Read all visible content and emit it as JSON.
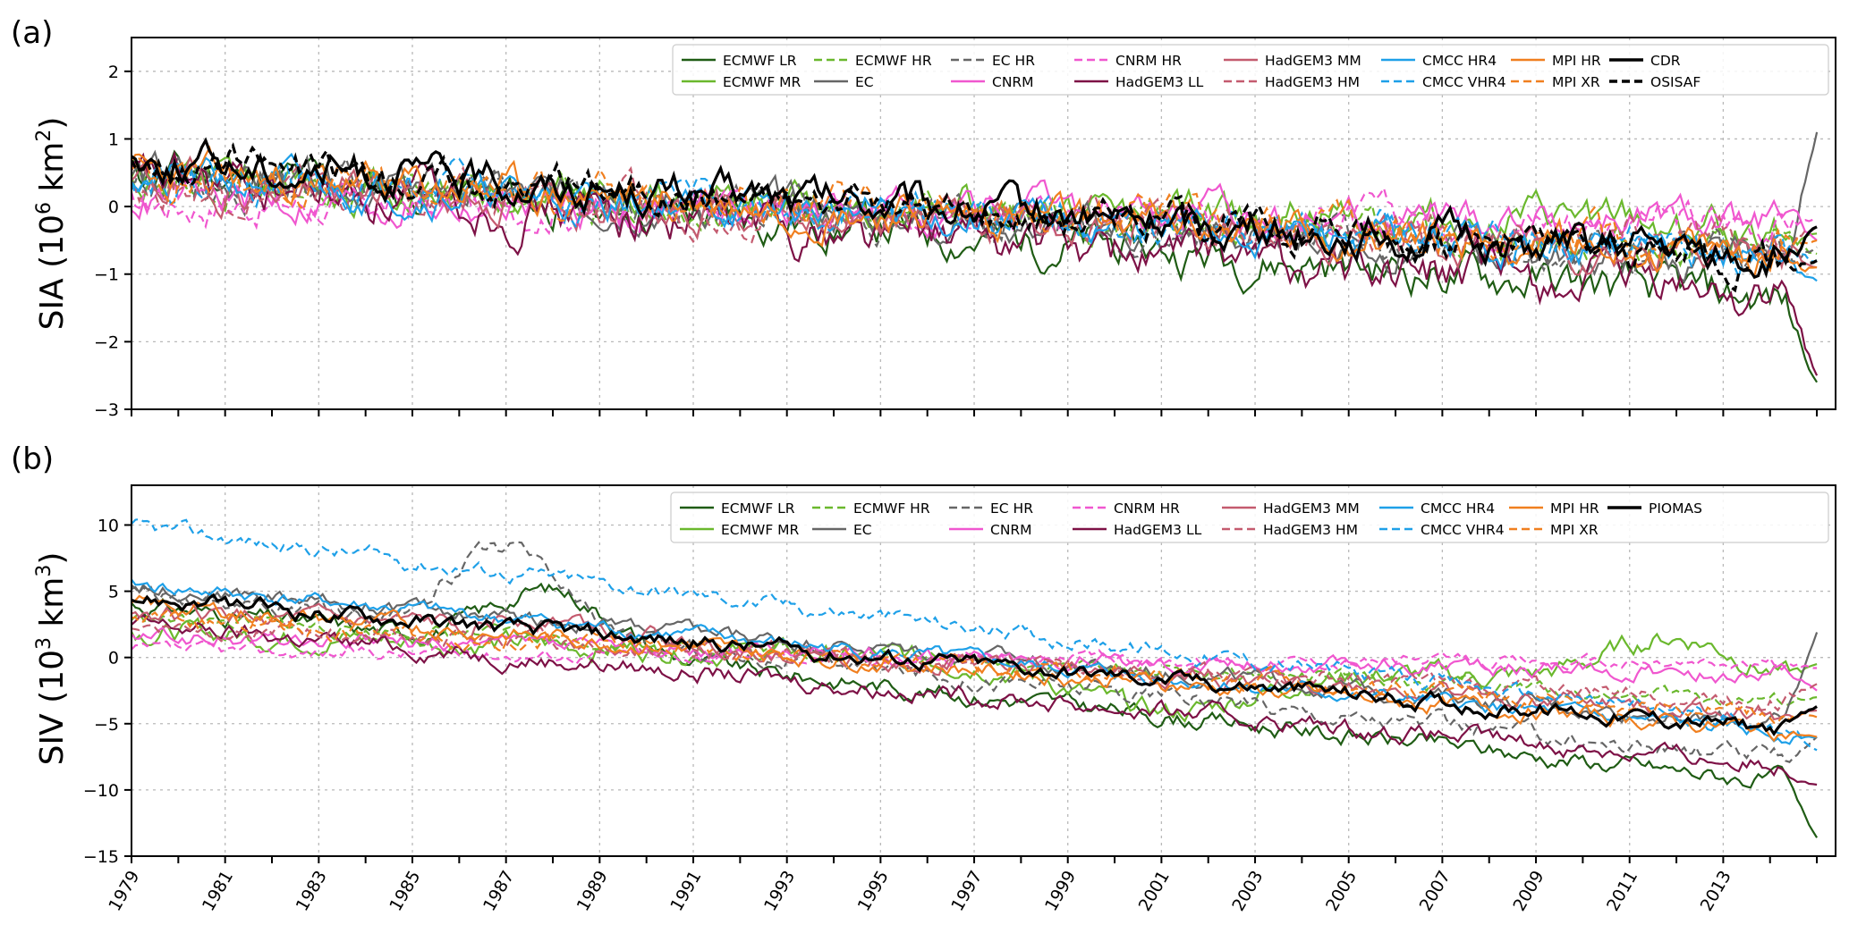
{
  "chart_data": [
    {
      "panel_label": "(a)",
      "type": "line",
      "ylabel_text": "SIA (10",
      "ylabel_sup1": "6",
      "ylabel_mid": " km",
      "ylabel_sup2": "2",
      "ylabel_end": ")",
      "ylim": [
        -3,
        2.5
      ],
      "yticks": [
        -3,
        -2,
        -1,
        0,
        1,
        2
      ],
      "ytick_labels": [
        "−3",
        "−2",
        "−1",
        "0",
        "1",
        "2"
      ],
      "xlim": [
        1979,
        2015.4
      ],
      "grid": true,
      "legend_position": "top-right",
      "series": [
        {
          "name": "ECMWF LR",
          "color": "#1f5c14",
          "dash": "solid",
          "start": 0.55,
          "trend": -0.055,
          "noise": 0.45,
          "seed": 11,
          "bump": 0,
          "bumpCenter": 1987,
          "bumpWidth": 2,
          "end_val": -2.6
        },
        {
          "name": "ECMWF MR",
          "color": "#6ab82d",
          "dash": "solid",
          "start": 0.35,
          "trend": -0.02,
          "noise": 0.42,
          "seed": 12,
          "bump": 0,
          "bumpCenter": 1987,
          "bumpWidth": 2,
          "end_val": -0.4
        },
        {
          "name": "ECMWF HR",
          "color": "#6ab82d",
          "dash": "dashed",
          "start": 0.4,
          "trend": -0.03,
          "noise": 0.38,
          "seed": 13,
          "bump": 0,
          "bumpCenter": 1987,
          "bumpWidth": 2,
          "end_val": -0.7
        },
        {
          "name": "EC",
          "color": "#666666",
          "dash": "solid",
          "start": 0.5,
          "trend": -0.04,
          "noise": 0.4,
          "seed": 14,
          "bump": 0,
          "bumpCenter": 1987,
          "bumpWidth": 2,
          "end_val": 1.1
        },
        {
          "name": "EC HR",
          "color": "#666666",
          "dash": "dashed",
          "start": 0.45,
          "trend": -0.035,
          "noise": 0.4,
          "seed": 15,
          "bump": 0,
          "bumpCenter": 1987,
          "bumpWidth": 2,
          "end_val": -0.6
        },
        {
          "name": "CNRM",
          "color": "#f057cf",
          "dash": "solid",
          "start": 0.1,
          "trend": -0.01,
          "noise": 0.38,
          "seed": 16,
          "bump": 0,
          "bumpCenter": 1987,
          "bumpWidth": 2,
          "end_val": -0.5
        },
        {
          "name": "CNRM HR",
          "color": "#f057cf",
          "dash": "dashed",
          "start": 0.05,
          "trend": -0.008,
          "noise": 0.38,
          "seed": 17,
          "bump": 0,
          "bumpCenter": 1987,
          "bumpWidth": 2,
          "end_val": -0.2
        },
        {
          "name": "HadGEM3 LL",
          "color": "#7d1146",
          "dash": "solid",
          "start": 0.4,
          "trend": -0.05,
          "noise": 0.5,
          "seed": 18,
          "bump": 0,
          "bumpCenter": 1987,
          "bumpWidth": 2,
          "end_val": -2.5
        },
        {
          "name": "HadGEM3 MM",
          "color": "#c45b6f",
          "dash": "solid",
          "start": 0.35,
          "trend": -0.03,
          "noise": 0.42,
          "seed": 19,
          "bump": 0,
          "bumpCenter": 1987,
          "bumpWidth": 2,
          "end_val": -0.9
        },
        {
          "name": "HadGEM3 HM",
          "color": "#c45b6f",
          "dash": "dashed",
          "start": 0.3,
          "trend": -0.025,
          "noise": 0.4,
          "seed": 20,
          "bump": 0,
          "bumpCenter": 1987,
          "bumpWidth": 2,
          "end_val": -0.3
        },
        {
          "name": "CMCC HR4",
          "color": "#1ea0e8",
          "dash": "solid",
          "start": 0.45,
          "trend": -0.035,
          "noise": 0.38,
          "seed": 21,
          "bump": 0,
          "bumpCenter": 1987,
          "bumpWidth": 2,
          "end_val": -1.1
        },
        {
          "name": "CMCC VHR4",
          "color": "#1ea0e8",
          "dash": "dashed",
          "start": 0.5,
          "trend": -0.035,
          "noise": 0.4,
          "seed": 22,
          "bump": 0,
          "bumpCenter": 1987,
          "bumpWidth": 2,
          "end_val": -0.8
        },
        {
          "name": "MPI HR",
          "color": "#f07f1f",
          "dash": "solid",
          "start": 0.5,
          "trend": -0.035,
          "noise": 0.4,
          "seed": 23,
          "bump": 0,
          "bumpCenter": 1987,
          "bumpWidth": 2,
          "end_val": -0.9
        },
        {
          "name": "MPI XR",
          "color": "#f07f1f",
          "dash": "dashed",
          "start": 0.45,
          "trend": -0.03,
          "noise": 0.4,
          "seed": 24,
          "bump": 0,
          "bumpCenter": 1987,
          "bumpWidth": 2,
          "end_val": -0.5
        },
        {
          "name": "CDR",
          "color": "#000000",
          "dash": "solid",
          "start": 0.7,
          "trend": -0.042,
          "noise": 0.4,
          "seed": 25,
          "bump": 0,
          "bumpCenter": 1987,
          "bumpWidth": 2,
          "end_val": -0.3,
          "bold": true
        },
        {
          "name": "OSISAF",
          "color": "#000000",
          "dash": "dashed",
          "start": 0.7,
          "trend": -0.042,
          "noise": 0.38,
          "seed": 26,
          "bump": 0,
          "bumpCenter": 1987,
          "bumpWidth": 2,
          "end_val": -0.8,
          "bold": true
        }
      ]
    },
    {
      "panel_label": "(b)",
      "type": "line",
      "ylabel_text": "SIV (10",
      "ylabel_sup1": "3",
      "ylabel_mid": " km",
      "ylabel_sup2": "3",
      "ylabel_end": ")",
      "ylim": [
        -15,
        13
      ],
      "yticks": [
        -15,
        -10,
        -5,
        0,
        5,
        10
      ],
      "ytick_labels": [
        "−15",
        "−10",
        "−5",
        "0",
        "5",
        "10"
      ],
      "xlim": [
        1979,
        2015.4
      ],
      "xtick_labels": [
        "1979",
        "1981",
        "1983",
        "1985",
        "1987",
        "1989",
        "1991",
        "1993",
        "1995",
        "1997",
        "1999",
        "2001",
        "2003",
        "2005",
        "2007",
        "2009",
        "2011",
        "2013"
      ],
      "grid": true,
      "legend_position": "top-right",
      "series": [
        {
          "name": "ECMWF LR",
          "color": "#1f5c14",
          "dash": "solid",
          "start": 4.0,
          "trend": -0.38,
          "noise": 1.0,
          "seed": 31,
          "bump": 4.5,
          "bumpCenter": 1988,
          "bumpWidth": 1.8,
          "end_val": -13.6
        },
        {
          "name": "ECMWF MR",
          "color": "#6ab82d",
          "dash": "solid",
          "start": 2.0,
          "trend": -0.12,
          "noise": 1.2,
          "seed": 32,
          "bump": 0,
          "bumpCenter": 2001,
          "bumpWidth": 2,
          "end_val": -0.5,
          "dip": -3.5,
          "dipCenter": 2001,
          "dipWidth": 2.5,
          "rise": 3.5,
          "riseCenter": 2012,
          "riseWidth": 2
        },
        {
          "name": "ECMWF HR",
          "color": "#6ab82d",
          "dash": "dashed",
          "start": 3.0,
          "trend": -0.18,
          "noise": 0.8,
          "seed": 33,
          "bump": 0,
          "bumpCenter": 1988,
          "bumpWidth": 2,
          "end_val": -3.0
        },
        {
          "name": "EC",
          "color": "#666666",
          "dash": "solid",
          "start": 5.5,
          "trend": -0.3,
          "noise": 0.9,
          "seed": 34,
          "bump": 0,
          "bumpCenter": 1988,
          "bumpWidth": 2,
          "end_val": 1.9
        },
        {
          "name": "EC HR",
          "color": "#666666",
          "dash": "dashed",
          "start": 5.0,
          "trend": -0.36,
          "noise": 1.0,
          "seed": 35,
          "bump": 6,
          "bumpCenter": 1987,
          "bumpWidth": 1.6,
          "end_val": -6.0
        },
        {
          "name": "CNRM",
          "color": "#f057cf",
          "dash": "solid",
          "start": 1.5,
          "trend": -0.08,
          "noise": 0.9,
          "seed": 36,
          "bump": 0,
          "bumpCenter": 1988,
          "bumpWidth": 2,
          "end_val": -2.5
        },
        {
          "name": "CNRM HR",
          "color": "#f057cf",
          "dash": "dashed",
          "start": 0.5,
          "trend": -0.03,
          "noise": 0.7,
          "seed": 37,
          "bump": 0,
          "bumpCenter": 1988,
          "bumpWidth": 2,
          "end_val": -0.8
        },
        {
          "name": "HadGEM3 LL",
          "color": "#7d1146",
          "dash": "solid",
          "start": 2.5,
          "trend": -0.3,
          "noise": 1.0,
          "seed": 38,
          "bump": 0,
          "bumpCenter": 1988,
          "bumpWidth": 2,
          "end_val": -9.6
        },
        {
          "name": "HadGEM3 MM",
          "color": "#c45b6f",
          "dash": "solid",
          "start": 3.5,
          "trend": -0.22,
          "noise": 1.0,
          "seed": 39,
          "bump": 1.5,
          "bumpCenter": 1988,
          "bumpWidth": 2,
          "end_val": -4.0
        },
        {
          "name": "HadGEM3 HM",
          "color": "#c45b6f",
          "dash": "dashed",
          "start": 2.5,
          "trend": -0.16,
          "noise": 0.9,
          "seed": 40,
          "bump": 0,
          "bumpCenter": 1988,
          "bumpWidth": 2,
          "end_val": -2.0
        },
        {
          "name": "CMCC HR4",
          "color": "#1ea0e8",
          "dash": "solid",
          "start": 5.5,
          "trend": -0.32,
          "noise": 0.8,
          "seed": 41,
          "bump": 0,
          "bumpCenter": 1988,
          "bumpWidth": 2,
          "end_val": -6.0
        },
        {
          "name": "CMCC VHR4",
          "color": "#1ea0e8",
          "dash": "dashed",
          "start": 9.8,
          "trend": -0.42,
          "noise": 0.9,
          "seed": 42,
          "bump": 0,
          "bumpCenter": 1988,
          "bumpWidth": 2,
          "end_val": -7.0
        },
        {
          "name": "MPI HR",
          "color": "#f07f1f",
          "dash": "solid",
          "start": 4.0,
          "trend": -0.27,
          "noise": 0.9,
          "seed": 43,
          "bump": 0,
          "bumpCenter": 1988,
          "bumpWidth": 2,
          "end_val": -6.0
        },
        {
          "name": "MPI XR",
          "color": "#f07f1f",
          "dash": "dashed",
          "start": 3.0,
          "trend": -0.2,
          "noise": 1.0,
          "seed": 44,
          "bump": 0,
          "bumpCenter": 1988,
          "bumpWidth": 2,
          "end_val": -4.5
        },
        {
          "name": "PIOMAS",
          "color": "#000000",
          "dash": "solid",
          "start": 4.5,
          "trend": -0.28,
          "noise": 0.9,
          "seed": 45,
          "bump": 0,
          "bumpCenter": 1988,
          "bumpWidth": 2,
          "end_val": -3.7,
          "bold": true
        }
      ]
    }
  ]
}
